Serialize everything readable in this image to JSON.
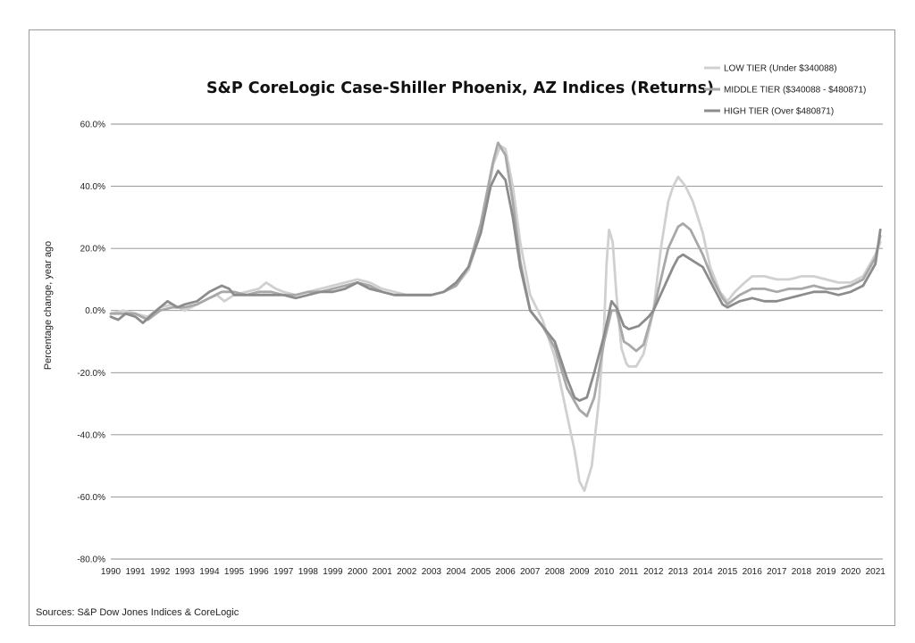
{
  "chart_data": {
    "type": "line",
    "title": "S&P CoreLogic Case-Shiller Phoenix, AZ Indices (Returns)",
    "xlabel": "",
    "ylabel": "Percentage change, year ago",
    "source": "Sources: S&P Dow Jones Indices & CoreLogic",
    "xlim": [
      1990,
      2021.3
    ],
    "ylim": [
      -80,
      60
    ],
    "y_ticks": [
      60,
      40,
      20,
      0,
      -20,
      -40,
      -60,
      -80
    ],
    "y_tick_labels": [
      "60.0%",
      "40.0%",
      "20.0%",
      "0.0%",
      "-20.0%",
      "-40.0%",
      "-60.0%",
      "-80.0%"
    ],
    "x_tick_labels": [
      "1990",
      "1991",
      "1992",
      "1993",
      "1994",
      "1995",
      "1996",
      "1997",
      "1998",
      "1999",
      "2000",
      "2001",
      "2002",
      "2003",
      "2004",
      "2005",
      "2006",
      "2007",
      "2008",
      "2009",
      "2010",
      "2011",
      "2012",
      "2013",
      "2014",
      "2015",
      "2016",
      "2017",
      "2018",
      "2019",
      "2020",
      "2021"
    ],
    "grid": "horizontal",
    "legend_position": "top-right",
    "series": [
      {
        "name": "LOW TIER (Under $340088)",
        "color": "#d0d0d0",
        "points": [
          [
            1990,
            -1
          ],
          [
            1990.5,
            0
          ],
          [
            1991,
            -1
          ],
          [
            1991.5,
            -2
          ],
          [
            1992,
            1
          ],
          [
            1992.5,
            2
          ],
          [
            1993,
            0
          ],
          [
            1993.5,
            2
          ],
          [
            1994,
            4
          ],
          [
            1994.3,
            5
          ],
          [
            1994.6,
            3
          ],
          [
            1995,
            5
          ],
          [
            1995.5,
            6
          ],
          [
            1996,
            7
          ],
          [
            1996.3,
            9
          ],
          [
            1996.7,
            7
          ],
          [
            1997,
            6
          ],
          [
            1997.5,
            5
          ],
          [
            1998,
            6
          ],
          [
            1998.5,
            7
          ],
          [
            1999,
            8
          ],
          [
            1999.5,
            9
          ],
          [
            2000,
            10
          ],
          [
            2000.5,
            9
          ],
          [
            2001,
            7
          ],
          [
            2001.5,
            6
          ],
          [
            2002,
            5
          ],
          [
            2002.5,
            5
          ],
          [
            2003,
            5
          ],
          [
            2003.5,
            6
          ],
          [
            2004,
            8
          ],
          [
            2004.5,
            13
          ],
          [
            2005,
            25
          ],
          [
            2005.5,
            47
          ],
          [
            2005.8,
            53
          ],
          [
            2006,
            52
          ],
          [
            2006.3,
            40
          ],
          [
            2006.6,
            22
          ],
          [
            2007,
            5
          ],
          [
            2007.5,
            -3
          ],
          [
            2008,
            -15
          ],
          [
            2008.4,
            -30
          ],
          [
            2008.8,
            -45
          ],
          [
            2009,
            -55
          ],
          [
            2009.2,
            -58
          ],
          [
            2009.5,
            -50
          ],
          [
            2009.8,
            -28
          ],
          [
            2010,
            -5
          ],
          [
            2010.1,
            15
          ],
          [
            2010.2,
            26
          ],
          [
            2010.35,
            22
          ],
          [
            2010.5,
            5
          ],
          [
            2010.7,
            -12
          ],
          [
            2010.9,
            -17
          ],
          [
            2011,
            -18
          ],
          [
            2011.3,
            -18
          ],
          [
            2011.6,
            -14
          ],
          [
            2012,
            0
          ],
          [
            2012.3,
            20
          ],
          [
            2012.6,
            35
          ],
          [
            2012.8,
            40
          ],
          [
            2013,
            43
          ],
          [
            2013.3,
            40
          ],
          [
            2013.6,
            35
          ],
          [
            2014,
            25
          ],
          [
            2014.3,
            14
          ],
          [
            2014.7,
            6
          ],
          [
            2015,
            3
          ],
          [
            2015.3,
            6
          ],
          [
            2015.7,
            9
          ],
          [
            2016,
            11
          ],
          [
            2016.5,
            11
          ],
          [
            2017,
            10
          ],
          [
            2017.5,
            10
          ],
          [
            2018,
            11
          ],
          [
            2018.5,
            11
          ],
          [
            2019,
            10
          ],
          [
            2019.5,
            9
          ],
          [
            2020,
            9
          ],
          [
            2020.5,
            11
          ],
          [
            2021,
            18
          ],
          [
            2021.2,
            22
          ]
        ]
      },
      {
        "name": "MIDDLE TIER ($340088 - $480871)",
        "color": "#a8a8a8",
        "points": [
          [
            1990,
            -1
          ],
          [
            1990.5,
            -1
          ],
          [
            1991,
            -1
          ],
          [
            1991.5,
            -3
          ],
          [
            1992,
            0
          ],
          [
            1992.5,
            1
          ],
          [
            1993,
            1
          ],
          [
            1993.5,
            2
          ],
          [
            1994,
            4
          ],
          [
            1994.5,
            6
          ],
          [
            1995,
            6
          ],
          [
            1995.5,
            5
          ],
          [
            1996,
            6
          ],
          [
            1996.5,
            6
          ],
          [
            1997,
            5
          ],
          [
            1997.5,
            5
          ],
          [
            1998,
            6
          ],
          [
            1998.5,
            6
          ],
          [
            1999,
            7
          ],
          [
            1999.5,
            8
          ],
          [
            2000,
            9
          ],
          [
            2000.5,
            8
          ],
          [
            2001,
            6
          ],
          [
            2001.5,
            5
          ],
          [
            2002,
            5
          ],
          [
            2002.5,
            5
          ],
          [
            2003,
            5
          ],
          [
            2003.5,
            6
          ],
          [
            2004,
            8
          ],
          [
            2004.5,
            14
          ],
          [
            2005,
            28
          ],
          [
            2005.5,
            48
          ],
          [
            2005.7,
            54
          ],
          [
            2006,
            50
          ],
          [
            2006.3,
            35
          ],
          [
            2006.6,
            16
          ],
          [
            2007,
            0
          ],
          [
            2007.5,
            -5
          ],
          [
            2008,
            -12
          ],
          [
            2008.5,
            -25
          ],
          [
            2009,
            -32
          ],
          [
            2009.3,
            -34
          ],
          [
            2009.6,
            -28
          ],
          [
            2010,
            -10
          ],
          [
            2010.3,
            0
          ],
          [
            2010.5,
            0
          ],
          [
            2010.8,
            -10
          ],
          [
            2011,
            -11
          ],
          [
            2011.3,
            -13
          ],
          [
            2011.6,
            -11
          ],
          [
            2012,
            0
          ],
          [
            2012.3,
            10
          ],
          [
            2012.6,
            20
          ],
          [
            2013,
            27
          ],
          [
            2013.2,
            28
          ],
          [
            2013.5,
            26
          ],
          [
            2014,
            18
          ],
          [
            2014.4,
            10
          ],
          [
            2014.8,
            4
          ],
          [
            2015,
            2
          ],
          [
            2015.5,
            5
          ],
          [
            2016,
            7
          ],
          [
            2016.5,
            7
          ],
          [
            2017,
            6
          ],
          [
            2017.5,
            7
          ],
          [
            2018,
            7
          ],
          [
            2018.5,
            8
          ],
          [
            2019,
            7
          ],
          [
            2019.5,
            7
          ],
          [
            2020,
            8
          ],
          [
            2020.5,
            10
          ],
          [
            2021,
            17
          ],
          [
            2021.2,
            24
          ]
        ]
      },
      {
        "name": "HIGH TIER (Over $480871)",
        "color": "#8c8c8c",
        "points": [
          [
            1990,
            -2
          ],
          [
            1990.3,
            -3
          ],
          [
            1990.6,
            -1
          ],
          [
            1991,
            -2
          ],
          [
            1991.3,
            -4
          ],
          [
            1991.7,
            -1
          ],
          [
            1992,
            1
          ],
          [
            1992.3,
            3
          ],
          [
            1992.7,
            1
          ],
          [
            1993,
            2
          ],
          [
            1993.5,
            3
          ],
          [
            1994,
            6
          ],
          [
            1994.5,
            8
          ],
          [
            1994.8,
            7
          ],
          [
            1995,
            5
          ],
          [
            1995.5,
            5
          ],
          [
            1996,
            5
          ],
          [
            1996.5,
            5
          ],
          [
            1997,
            5
          ],
          [
            1997.5,
            4
          ],
          [
            1998,
            5
          ],
          [
            1998.5,
            6
          ],
          [
            1999,
            6
          ],
          [
            1999.5,
            7
          ],
          [
            2000,
            9
          ],
          [
            2000.5,
            7
          ],
          [
            2001,
            6
          ],
          [
            2001.5,
            5
          ],
          [
            2002,
            5
          ],
          [
            2002.5,
            5
          ],
          [
            2003,
            5
          ],
          [
            2003.5,
            6
          ],
          [
            2004,
            9
          ],
          [
            2004.5,
            14
          ],
          [
            2005,
            25
          ],
          [
            2005.4,
            40
          ],
          [
            2005.7,
            45
          ],
          [
            2006,
            42
          ],
          [
            2006.3,
            30
          ],
          [
            2006.6,
            14
          ],
          [
            2007,
            0
          ],
          [
            2007.5,
            -5
          ],
          [
            2008,
            -10
          ],
          [
            2008.5,
            -22
          ],
          [
            2008.8,
            -28
          ],
          [
            2009,
            -29
          ],
          [
            2009.3,
            -28
          ],
          [
            2009.6,
            -20
          ],
          [
            2010,
            -8
          ],
          [
            2010.3,
            3
          ],
          [
            2010.5,
            1
          ],
          [
            2010.8,
            -5
          ],
          [
            2011,
            -6
          ],
          [
            2011.4,
            -5
          ],
          [
            2011.8,
            -2
          ],
          [
            2012,
            0
          ],
          [
            2012.4,
            7
          ],
          [
            2012.8,
            14
          ],
          [
            2013,
            17
          ],
          [
            2013.2,
            18
          ],
          [
            2013.6,
            16
          ],
          [
            2014,
            14
          ],
          [
            2014.4,
            8
          ],
          [
            2014.8,
            2
          ],
          [
            2015,
            1
          ],
          [
            2015.5,
            3
          ],
          [
            2016,
            4
          ],
          [
            2016.5,
            3
          ],
          [
            2017,
            3
          ],
          [
            2017.5,
            4
          ],
          [
            2018,
            5
          ],
          [
            2018.5,
            6
          ],
          [
            2019,
            6
          ],
          [
            2019.5,
            5
          ],
          [
            2020,
            6
          ],
          [
            2020.5,
            8
          ],
          [
            2021,
            15
          ],
          [
            2021.2,
            26
          ]
        ]
      }
    ]
  }
}
